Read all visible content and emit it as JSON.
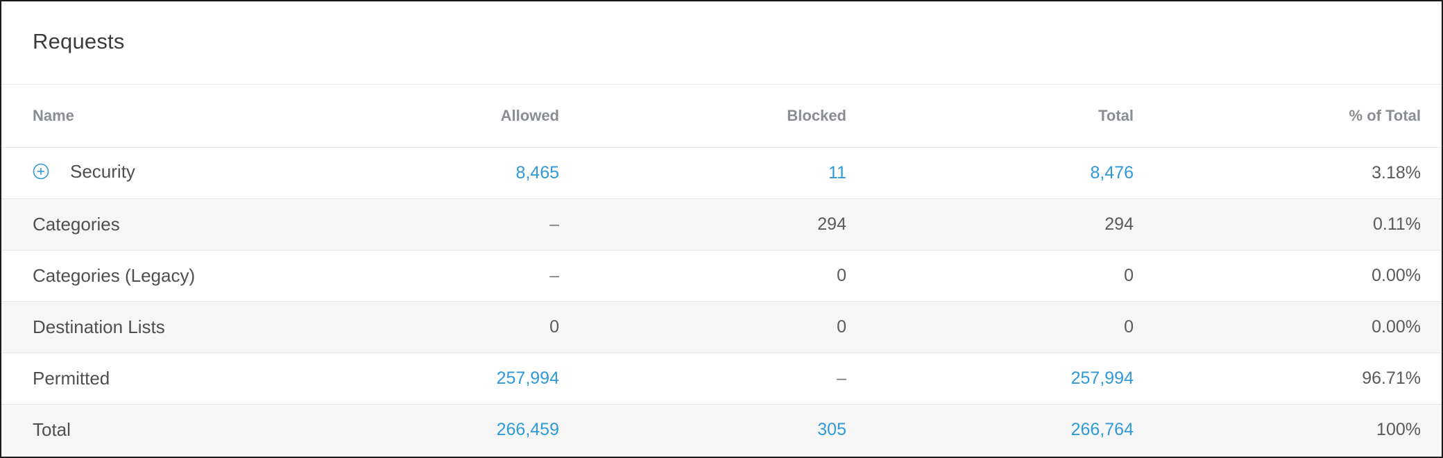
{
  "panel": {
    "title": "Requests"
  },
  "table": {
    "headers": {
      "name": "Name",
      "allowed": "Allowed",
      "blocked": "Blocked",
      "total": "Total",
      "pct": "% of Total"
    },
    "rows": [
      {
        "name": "Security",
        "allowed": "8,465",
        "blocked": "11",
        "total": "8,476",
        "pct": "3.18%"
      },
      {
        "name": "Categories",
        "allowed": "–",
        "blocked": "294",
        "total": "294",
        "pct": "0.11%"
      },
      {
        "name": "Categories (Legacy)",
        "allowed": "–",
        "blocked": "0",
        "total": "0",
        "pct": "0.00%"
      },
      {
        "name": "Destination Lists",
        "allowed": "0",
        "blocked": "0",
        "total": "0",
        "pct": "0.00%"
      },
      {
        "name": "Permitted",
        "allowed": "257,994",
        "blocked": "–",
        "total": "257,994",
        "pct": "96.71%"
      },
      {
        "name": "Total",
        "allowed": "266,459",
        "blocked": "305",
        "total": "266,764",
        "pct": "100%"
      }
    ]
  },
  "icons": {
    "expand": "plus-circle-icon"
  },
  "colors": {
    "link": "#2f9ad6",
    "header_text": "#8a8d91",
    "row_alt_bg": "#f6f6f6",
    "border": "#1a1a1a"
  }
}
